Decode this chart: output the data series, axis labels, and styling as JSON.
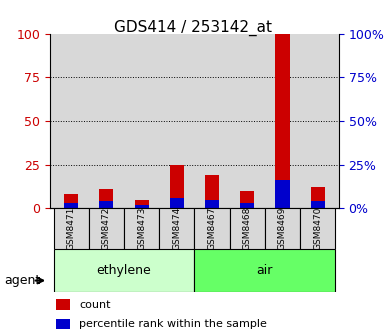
{
  "title": "GDS414 / 253142_at",
  "samples": [
    "GSM8471",
    "GSM8472",
    "GSM8473",
    "GSM8474",
    "GSM8467",
    "GSM8468",
    "GSM8469",
    "GSM8470"
  ],
  "groups": [
    {
      "name": "ethylene",
      "samples": [
        "GSM8471",
        "GSM8472",
        "GSM8473",
        "GSM8474"
      ],
      "color": "#ccffcc"
    },
    {
      "name": "air",
      "samples": [
        "GSM8467",
        "GSM8468",
        "GSM8469",
        "GSM8470"
      ],
      "color": "#66ff66"
    }
  ],
  "count_values": [
    8,
    11,
    5,
    25,
    19,
    10,
    100,
    12
  ],
  "percentile_values": [
    3,
    4,
    2,
    6,
    5,
    3,
    16,
    4
  ],
  "bar_width": 0.4,
  "ylim": [
    0,
    100
  ],
  "yticks": [
    0,
    25,
    50,
    75,
    100
  ],
  "count_color": "#cc0000",
  "percentile_color": "#0000cc",
  "grid_color": "#000000",
  "axis_bg": "#d8d8d8",
  "legend_count_label": "count",
  "legend_percentile_label": "percentile rank within the sample",
  "agent_label": "agent",
  "left_axis_color": "#cc0000",
  "right_axis_color": "#0000cc"
}
